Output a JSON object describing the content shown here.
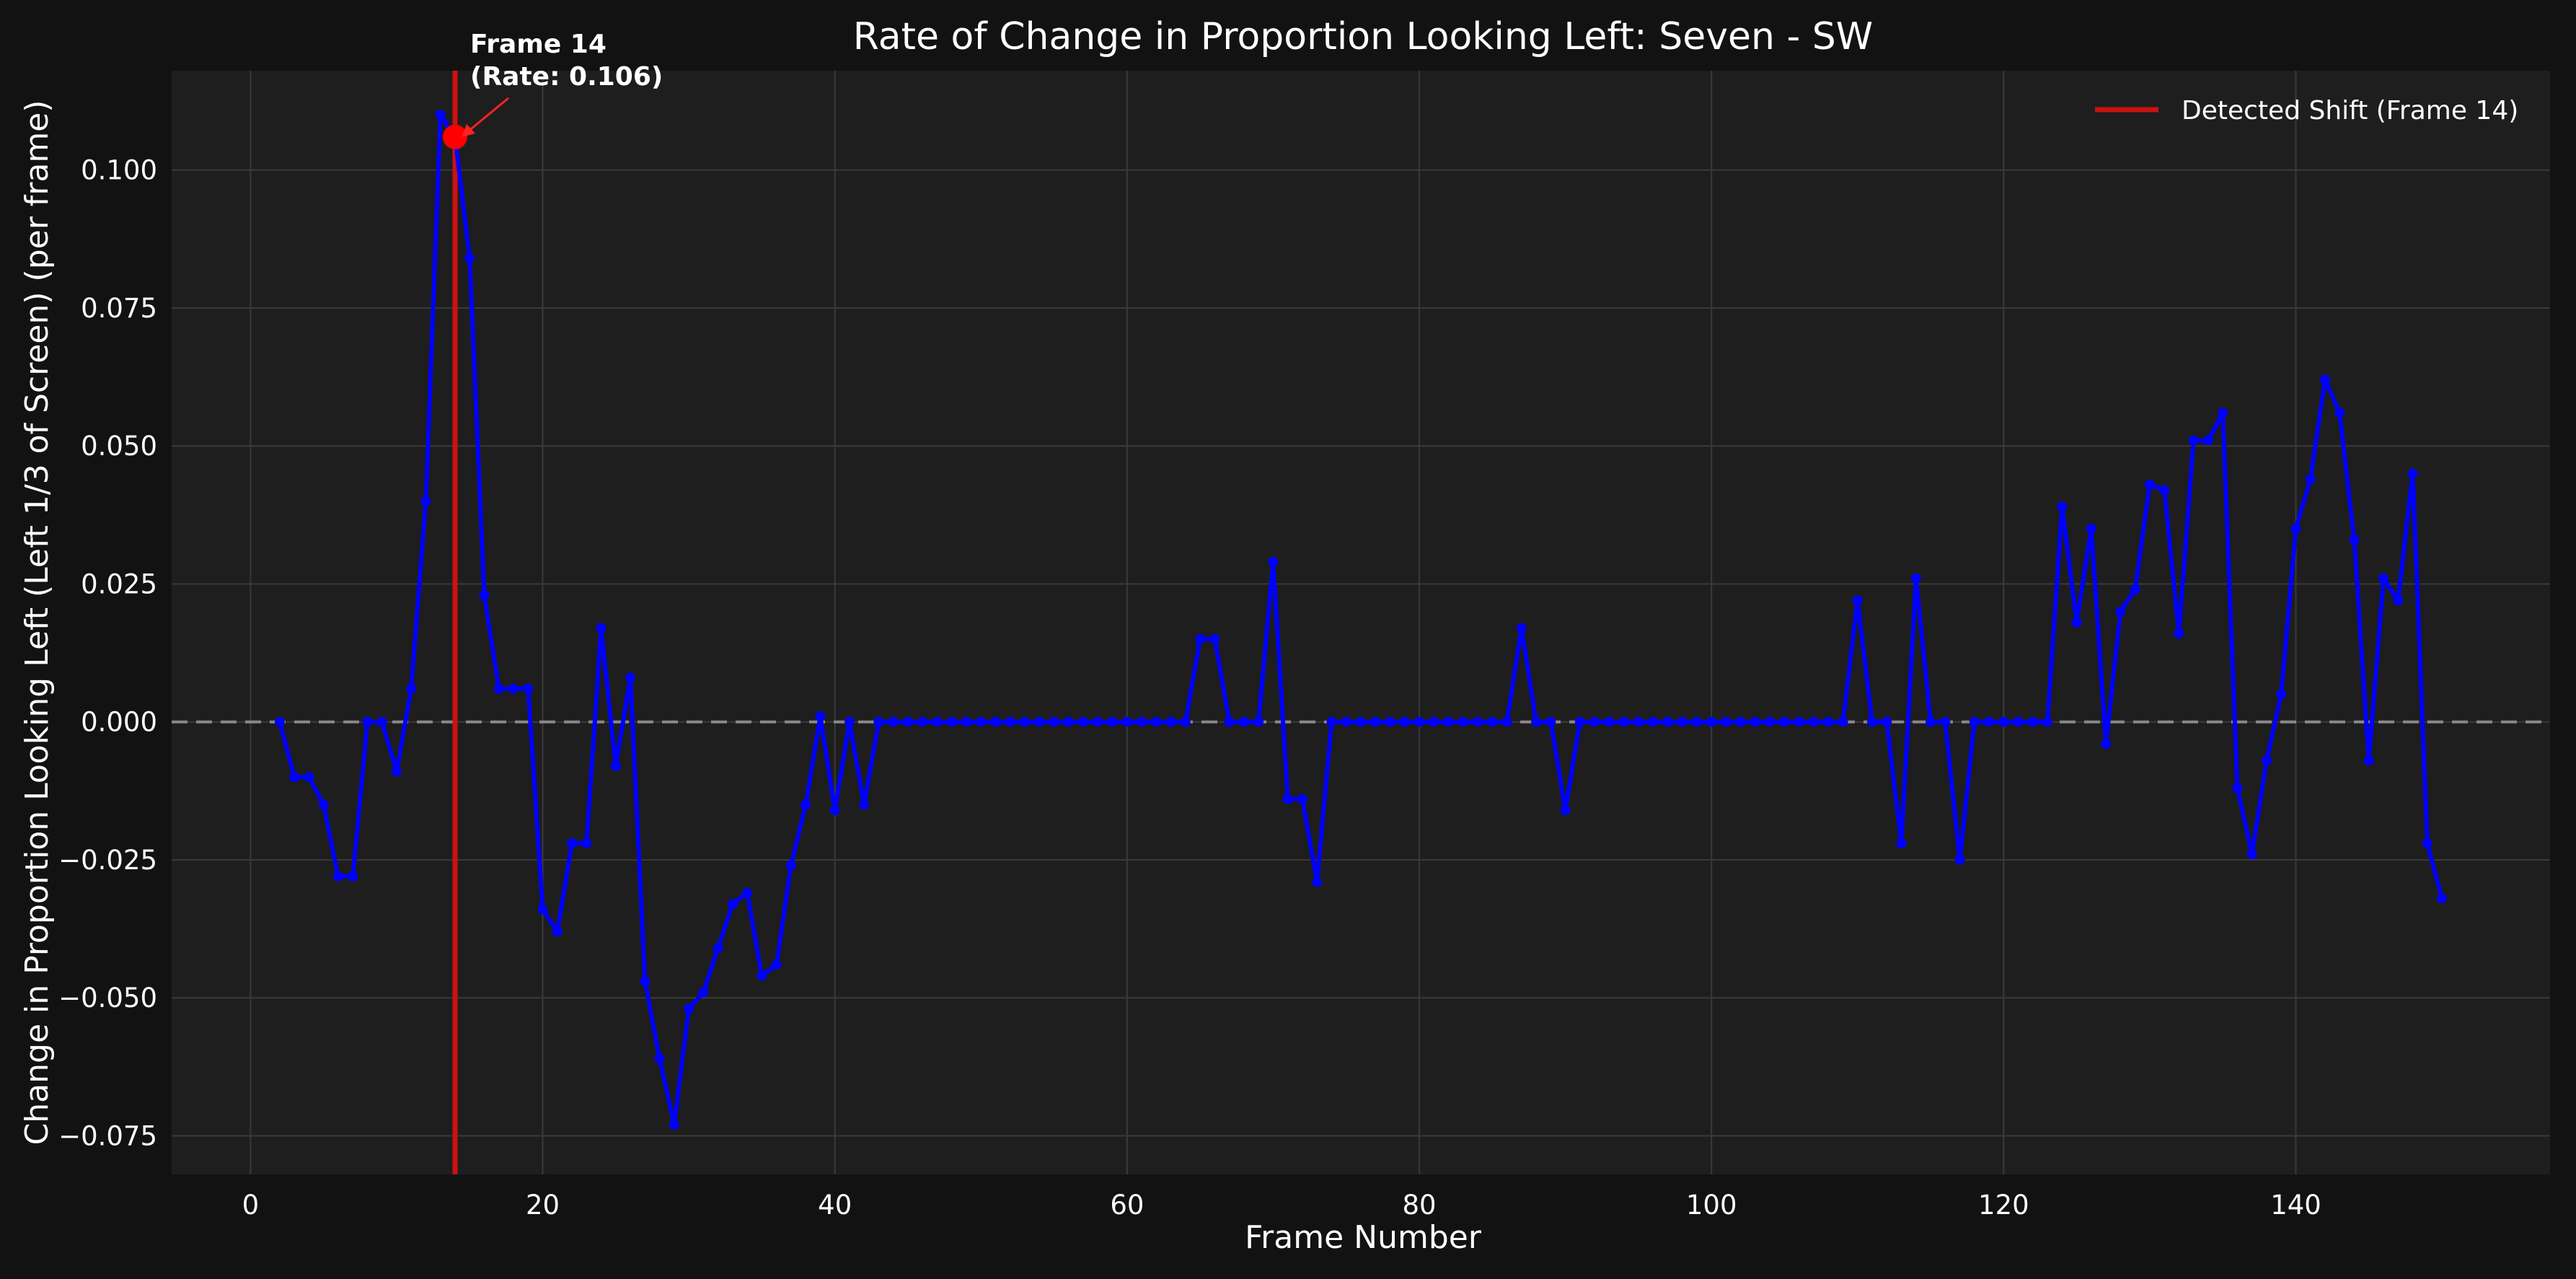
{
  "chart_data": {
    "type": "line",
    "title": "Rate of Change in Proportion Looking Left: Seven - SW",
    "xlabel": "Frame Number",
    "ylabel": "Change in Proportion Looking Left (Left 1/3 of Screen) (per frame)",
    "xlim": [
      -5.4,
      157.4
    ],
    "ylim": [
      -0.082,
      0.118
    ],
    "x_ticks": [
      0,
      20,
      40,
      60,
      80,
      100,
      120,
      140
    ],
    "y_ticks": [
      -0.075,
      -0.05,
      -0.025,
      0.0,
      0.025,
      0.05,
      0.075,
      0.1
    ],
    "x_tick_labels": [
      "0",
      "20",
      "40",
      "60",
      "80",
      "100",
      "120",
      "140"
    ],
    "y_tick_labels": [
      "−0.075",
      "−0.050",
      "−0.025",
      "0.000",
      "0.025",
      "0.050",
      "0.075",
      "0.100"
    ],
    "grid": true,
    "legend_position": "top-right",
    "series": [
      {
        "color": "#0000ff",
        "x": [
          2,
          3,
          4,
          5,
          6,
          7,
          8,
          9,
          10,
          11,
          12,
          13,
          14,
          15,
          16,
          17,
          18,
          19,
          20,
          21,
          22,
          23,
          24,
          25,
          26,
          27,
          28,
          29,
          30,
          31,
          32,
          33,
          34,
          35,
          36,
          37,
          38,
          39,
          40,
          41,
          42,
          43,
          44,
          45,
          46,
          47,
          48,
          49,
          50,
          51,
          52,
          53,
          54,
          55,
          56,
          57,
          58,
          59,
          60,
          61,
          62,
          63,
          64,
          65,
          66,
          67,
          68,
          69,
          70,
          71,
          72,
          73,
          74,
          75,
          76,
          77,
          78,
          79,
          80,
          81,
          82,
          83,
          84,
          85,
          86,
          87,
          88,
          89,
          90,
          91,
          92,
          93,
          94,
          95,
          96,
          97,
          98,
          99,
          100,
          101,
          102,
          103,
          104,
          105,
          106,
          107,
          108,
          109,
          110,
          111,
          112,
          113,
          114,
          115,
          116,
          117,
          118,
          119,
          120,
          121,
          122,
          123,
          124,
          125,
          126,
          127,
          128,
          129,
          130,
          131,
          132,
          133,
          134,
          135,
          136,
          137,
          138,
          139,
          140,
          141,
          142,
          143,
          144,
          145,
          146,
          147,
          148,
          149,
          150
        ],
        "y": [
          0.0,
          -0.01,
          -0.01,
          -0.015,
          -0.028,
          -0.028,
          0.0,
          0.0,
          -0.009,
          0.006,
          0.04,
          0.11,
          0.106,
          0.084,
          0.023,
          0.006,
          0.006,
          0.006,
          -0.034,
          -0.038,
          -0.022,
          -0.022,
          0.017,
          -0.008,
          0.008,
          -0.047,
          -0.061,
          -0.073,
          -0.052,
          -0.049,
          -0.041,
          -0.033,
          -0.031,
          -0.046,
          -0.044,
          -0.026,
          -0.015,
          0.001,
          -0.016,
          0.0,
          -0.015,
          0.0,
          0.0,
          0.0,
          0.0,
          0.0,
          0.0,
          0.0,
          0.0,
          0.0,
          0.0,
          0.0,
          0.0,
          0.0,
          0.0,
          0.0,
          0.0,
          0.0,
          0.0,
          0.0,
          0.0,
          0.0,
          0.0,
          0.015,
          0.015,
          0.0,
          0.0,
          0.0,
          0.029,
          -0.014,
          -0.014,
          -0.029,
          0.0,
          0.0,
          0.0,
          0.0,
          0.0,
          0.0,
          0.0,
          0.0,
          0.0,
          0.0,
          0.0,
          0.0,
          0.0,
          0.017,
          0.0,
          0.0,
          -0.016,
          0.0,
          0.0,
          0.0,
          0.0,
          0.0,
          0.0,
          0.0,
          0.0,
          0.0,
          0.0,
          0.0,
          0.0,
          0.0,
          0.0,
          0.0,
          0.0,
          0.0,
          0.0,
          0.0,
          0.022,
          0.0,
          0.0,
          -0.022,
          0.026,
          0.0,
          0.0,
          -0.025,
          0.0,
          0.0,
          0.0,
          0.0,
          0.0,
          0.0,
          0.039,
          0.018,
          0.035,
          -0.004,
          0.02,
          0.024,
          0.043,
          0.042,
          0.016,
          0.051,
          0.051,
          0.056,
          -0.012,
          -0.024,
          -0.007,
          0.005,
          0.035,
          0.044,
          0.062,
          0.056,
          0.033,
          -0.007,
          0.026,
          0.022,
          0.045,
          -0.022,
          -0.032
        ]
      }
    ],
    "detected_shift": {
      "frame": 14,
      "rate": 0.106,
      "color": "#cc1111",
      "legend_label": "Detected Shift (Frame 14)",
      "annotation_line1": "Frame 14",
      "annotation_line2": "(Rate: 0.106)"
    },
    "zero_line": {
      "value": 0,
      "color": "#888888",
      "style": "dashed"
    },
    "colors": {
      "figure_bg": "#121212",
      "plot_bg": "#1e1e1e",
      "grid": "#3a3a3a",
      "marker_highlight": "#ff0000"
    }
  }
}
